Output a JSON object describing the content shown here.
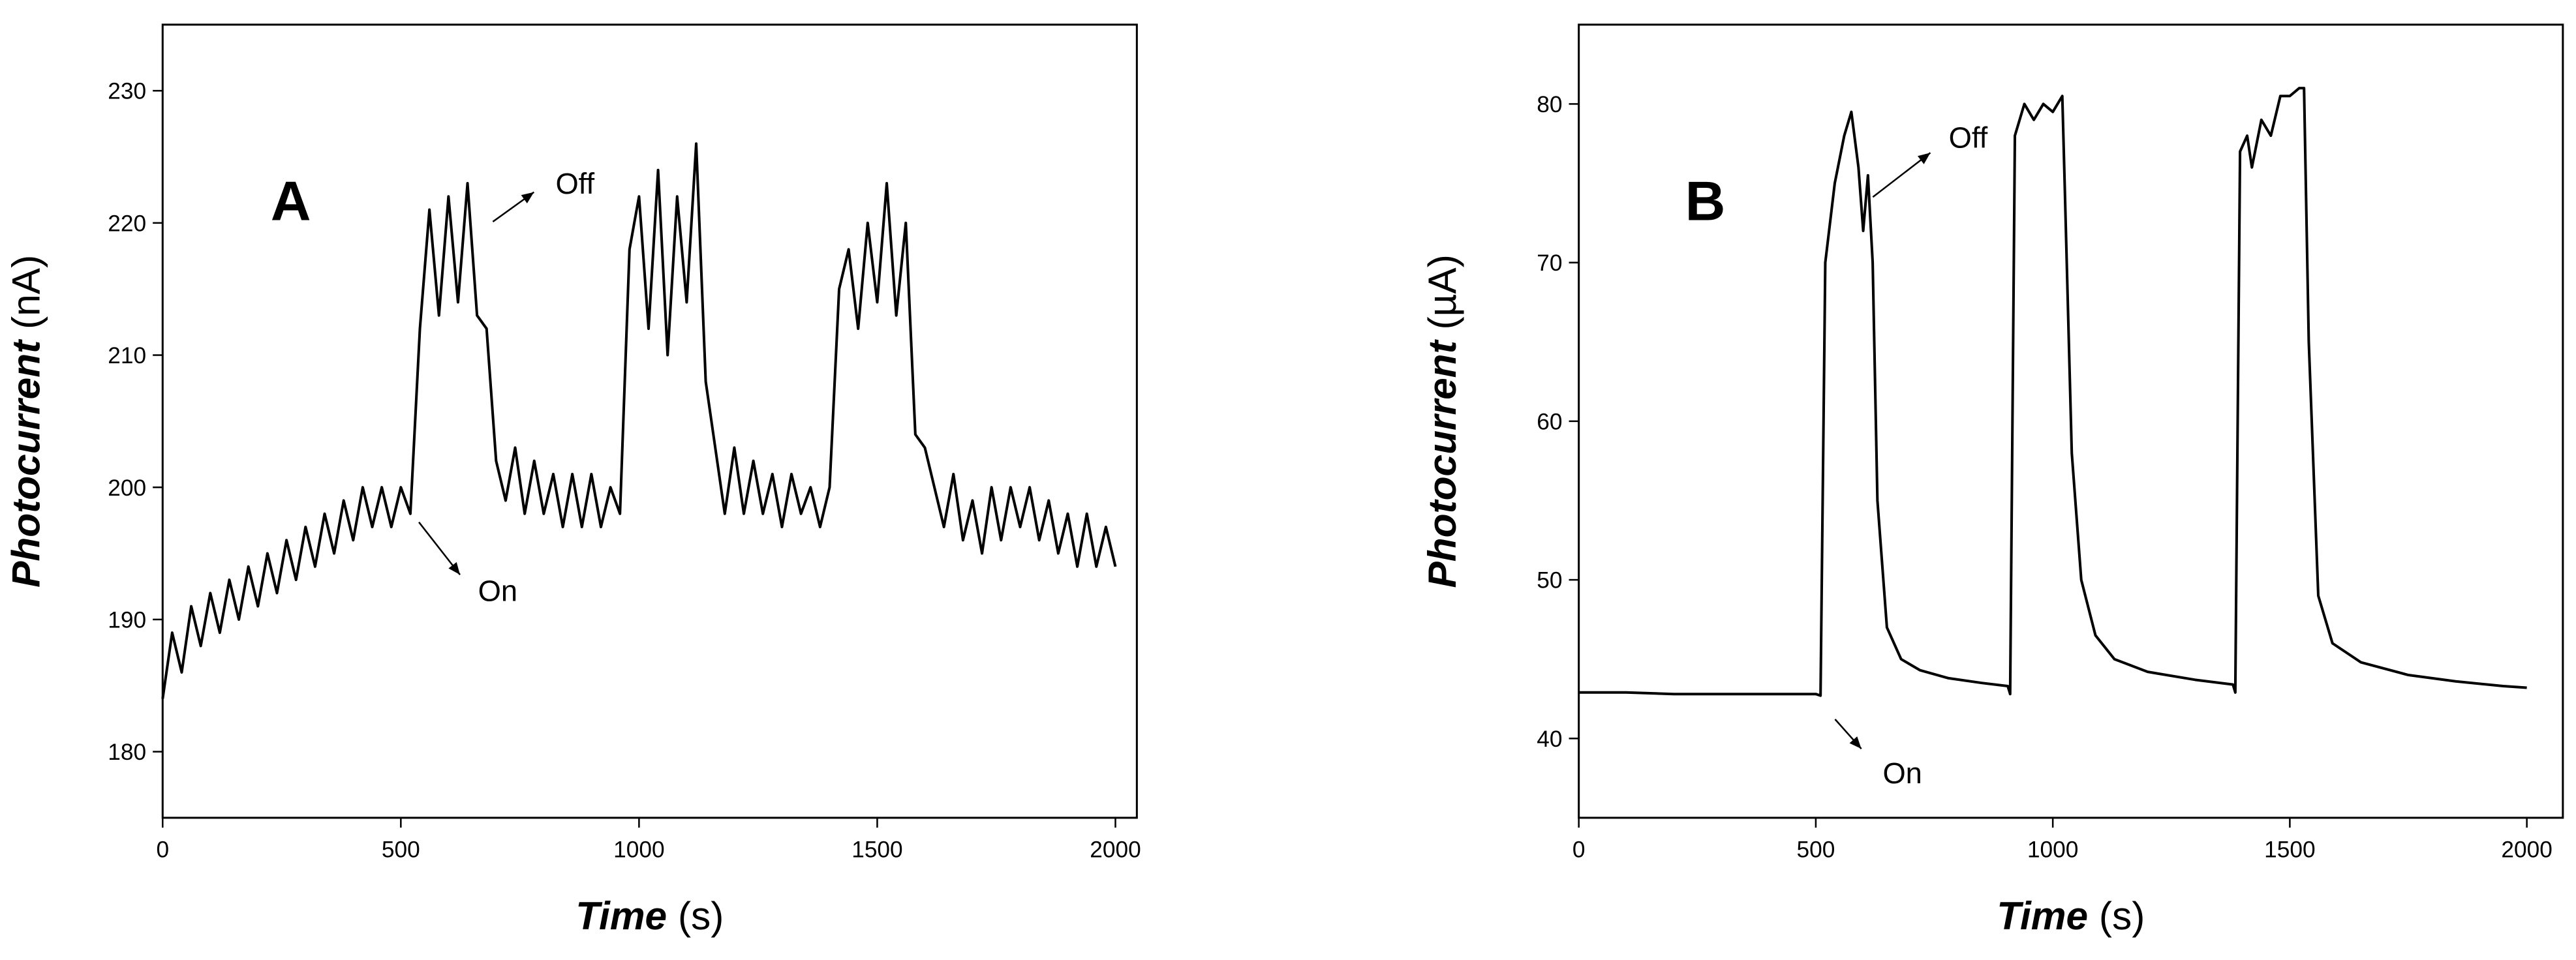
{
  "chart_data": [
    {
      "type": "line",
      "panel_label": "A",
      "xlabel": "Time",
      "xlabel_unit": "(s)",
      "ylabel": "Photocurrent",
      "ylabel_unit": "(nA)",
      "annotations": [
        "Off",
        "On"
      ],
      "xlim": [
        0,
        2045
      ],
      "ylim": [
        175,
        235
      ],
      "xticks": [
        0,
        500,
        1000,
        1500,
        2000
      ],
      "yticks": [
        180,
        190,
        200,
        210,
        220,
        230
      ],
      "series": [
        {
          "color": "#000000",
          "x": [
            0,
            20,
            40,
            60,
            80,
            100,
            120,
            140,
            160,
            180,
            200,
            220,
            240,
            260,
            280,
            300,
            320,
            340,
            360,
            380,
            400,
            420,
            440,
            460,
            480,
            500,
            520,
            540,
            560,
            580,
            600,
            620,
            640,
            660,
            680,
            700,
            720,
            740,
            760,
            780,
            800,
            820,
            840,
            860,
            880,
            900,
            920,
            940,
            960,
            980,
            1000,
            1020,
            1040,
            1060,
            1080,
            1100,
            1120,
            1140,
            1160,
            1180,
            1200,
            1220,
            1240,
            1260,
            1280,
            1300,
            1320,
            1340,
            1360,
            1380,
            1400,
            1420,
            1440,
            1460,
            1480,
            1500,
            1520,
            1540,
            1560,
            1580,
            1600,
            1620,
            1640,
            1660,
            1680,
            1700,
            1720,
            1740,
            1760,
            1780,
            1800,
            1820,
            1840,
            1860,
            1880,
            1900,
            1920,
            1940,
            1960,
            1980,
            2000
          ],
          "values": [
            184,
            189,
            186,
            191,
            188,
            192,
            189,
            193,
            190,
            194,
            191,
            195,
            192,
            196,
            193,
            197,
            194,
            198,
            195,
            199,
            196,
            200,
            197,
            200,
            197,
            200,
            198,
            212,
            221,
            213,
            222,
            214,
            223,
            213,
            212,
            202,
            199,
            203,
            198,
            202,
            198,
            201,
            197,
            201,
            197,
            201,
            197,
            200,
            198,
            218,
            222,
            212,
            224,
            210,
            222,
            214,
            226,
            208,
            203,
            198,
            203,
            198,
            202,
            198,
            201,
            197,
            201,
            198,
            200,
            197,
            200,
            215,
            218,
            212,
            220,
            214,
            223,
            213,
            220,
            204,
            203,
            200,
            197,
            201,
            196,
            199,
            195,
            200,
            196,
            200,
            197,
            200,
            196,
            199,
            195,
            198,
            194,
            198,
            194,
            197,
            194
          ]
        }
      ]
    },
    {
      "type": "line",
      "panel_label": "B",
      "xlabel": "Time",
      "xlabel_unit": "(s)",
      "ylabel": "Photocurrent",
      "ylabel_unit": "(µA)",
      "annotations": [
        "Off",
        "On"
      ],
      "xlim": [
        0,
        2076
      ],
      "ylim": [
        35,
        85
      ],
      "xticks": [
        0,
        500,
        1000,
        1500,
        2000
      ],
      "yticks": [
        40,
        50,
        60,
        70,
        80
      ],
      "series": [
        {
          "color": "#000000",
          "x": [
            0,
            100,
            200,
            300,
            400,
            500,
            510,
            520,
            540,
            560,
            575,
            590,
            600,
            610,
            620,
            630,
            650,
            680,
            720,
            780,
            850,
            905,
            910,
            920,
            940,
            960,
            980,
            1000,
            1020,
            1025,
            1040,
            1060,
            1090,
            1130,
            1200,
            1300,
            1380,
            1385,
            1395,
            1410,
            1420,
            1440,
            1460,
            1480,
            1500,
            1520,
            1530,
            1540,
            1560,
            1590,
            1650,
            1750,
            1850,
            1950,
            2000
          ],
          "values": [
            42.9,
            42.9,
            42.8,
            42.8,
            42.8,
            42.8,
            42.7,
            70,
            75,
            78,
            79.5,
            76,
            72,
            75.5,
            70,
            55,
            47,
            45,
            44.3,
            43.8,
            43.5,
            43.3,
            42.8,
            78,
            80,
            79,
            80,
            79.5,
            80.5,
            75,
            58,
            50,
            46.5,
            45,
            44.2,
            43.7,
            43.4,
            42.9,
            77,
            78,
            76,
            79,
            78,
            80.5,
            80.5,
            81,
            81,
            65,
            49,
            46,
            44.8,
            44,
            43.6,
            43.3,
            43.2
          ]
        }
      ]
    }
  ]
}
